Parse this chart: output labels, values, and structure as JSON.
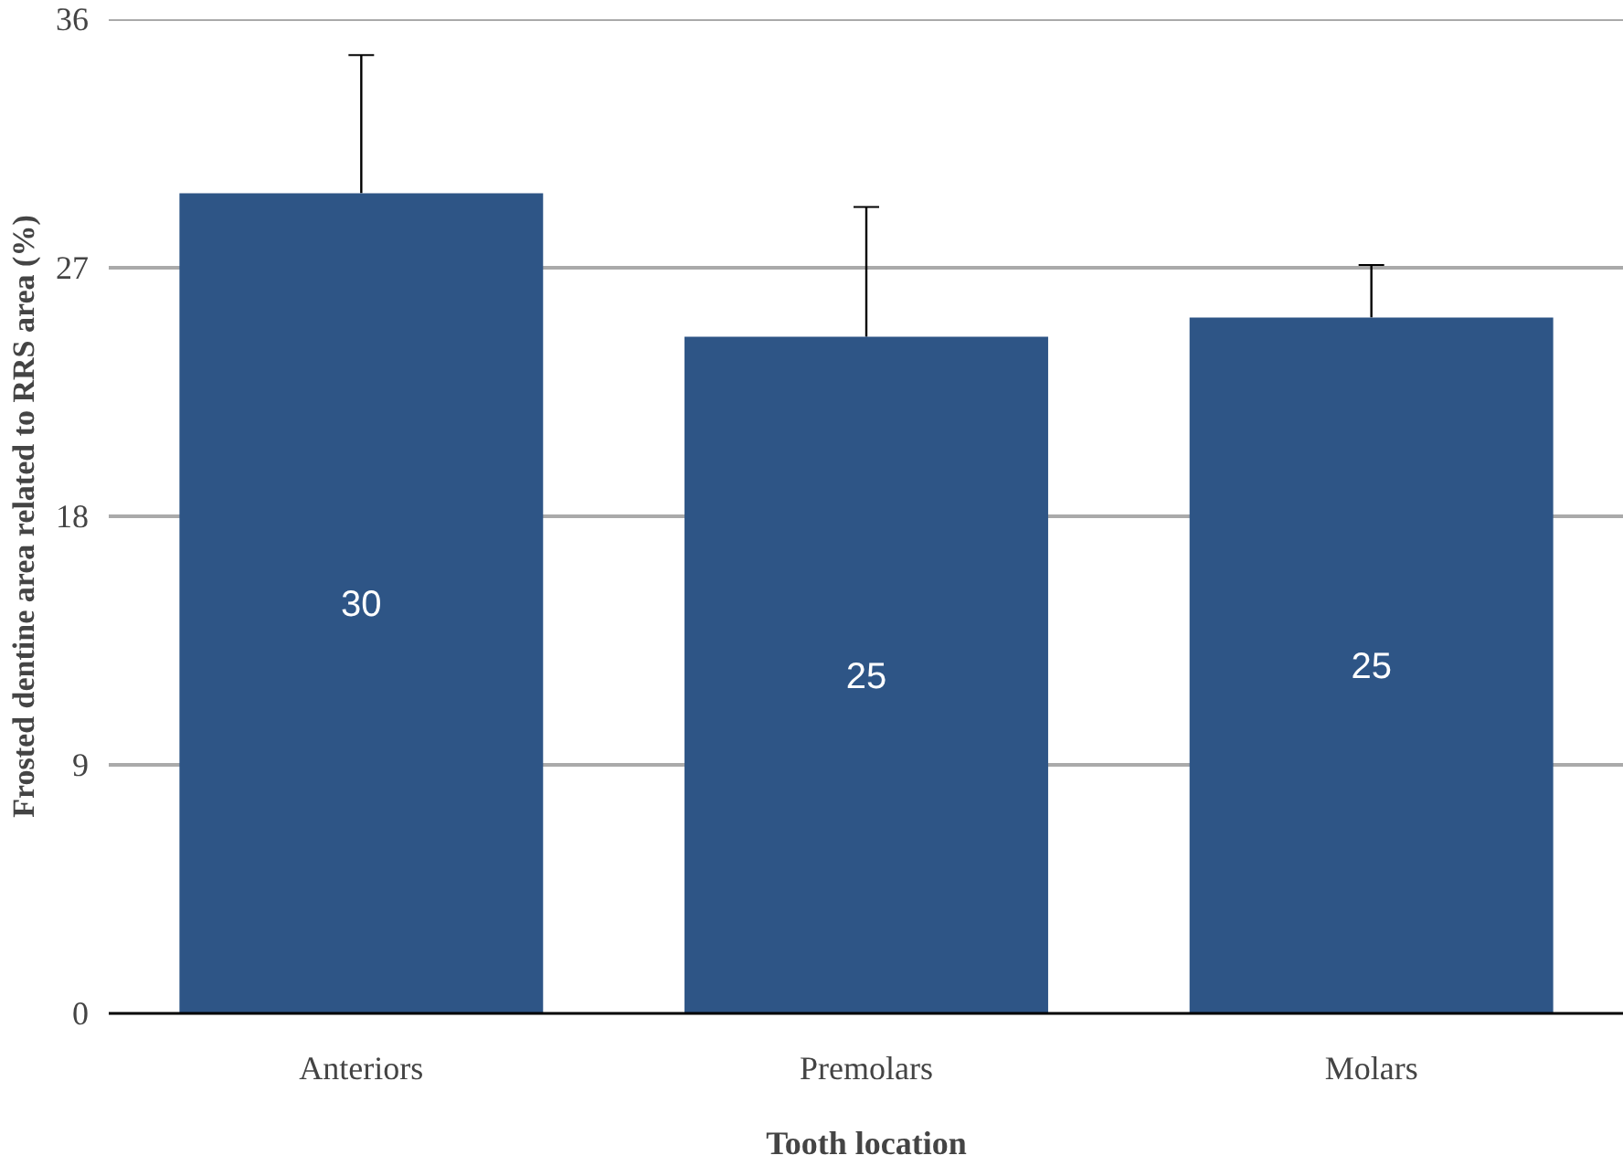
{
  "chart_data": {
    "type": "bar",
    "xlabel": "Tooth location",
    "ylabel": "Frosted dentine area related to RRS area (%)",
    "categories": [
      "Anteriors",
      "Premolars",
      "Molars"
    ],
    "values": [
      29.7,
      24.5,
      25.2
    ],
    "value_labels": [
      "30",
      "25",
      "25"
    ],
    "errors": [
      [
        29.7,
        34.7
      ],
      [
        24.5,
        29.2
      ],
      [
        25.2,
        27.1
      ]
    ],
    "color": "#2e5586",
    "ylim": [
      0,
      36
    ],
    "yticks": [
      0,
      9,
      18,
      27,
      36
    ],
    "grid": "y"
  }
}
